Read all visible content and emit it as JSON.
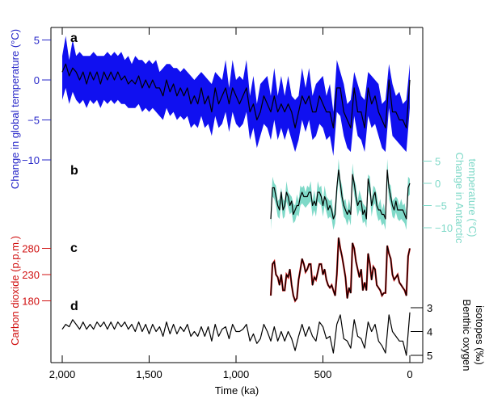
{
  "chart_data": [
    {
      "type": "area",
      "panel": "a",
      "ylabel": "Change in global temperature (°C)",
      "yticks": [
        5,
        0,
        -5,
        -10
      ],
      "ylim": [
        -12,
        6
      ],
      "color": "#1010f0",
      "uncertainty": 2.5,
      "x": [
        0,
        20,
        40,
        60,
        80,
        100,
        120,
        140,
        160,
        180,
        200,
        220,
        240,
        260,
        280,
        300,
        320,
        340,
        360,
        380,
        400,
        420,
        440,
        460,
        480,
        500,
        520,
        540,
        560,
        580,
        600,
        620,
        640,
        660,
        680,
        700,
        720,
        740,
        760,
        780,
        800,
        820,
        840,
        860,
        880,
        900,
        920,
        940,
        960,
        980,
        1000,
        1020,
        1040,
        1060,
        1080,
        1100,
        1120,
        1140,
        1160,
        1180,
        1200,
        1220,
        1240,
        1260,
        1280,
        1300,
        1320,
        1340,
        1360,
        1380,
        1400,
        1420,
        1440,
        1460,
        1480,
        1500,
        1520,
        1540,
        1560,
        1580,
        1600,
        1620,
        1640,
        1660,
        1680,
        1700,
        1720,
        1740,
        1760,
        1780,
        1800,
        1820,
        1840,
        1860,
        1880,
        1900,
        1920,
        1940,
        1960,
        1980,
        2000
      ],
      "values": [
        0,
        -6,
        -5,
        -5,
        -4,
        -4,
        0,
        -6,
        -5,
        -4,
        -2,
        -3,
        -1,
        -6,
        -4,
        -4,
        -1,
        -6,
        -5,
        -4,
        -1,
        -1,
        -6,
        -4,
        -4,
        -3,
        -2,
        -4,
        -4,
        -2,
        -3,
        -2,
        -4,
        -6,
        -4,
        -3,
        -4,
        -3,
        -4,
        -2,
        -4,
        -3,
        -2,
        -4,
        -5,
        -3,
        -4,
        -1,
        -2,
        -3,
        -2,
        -1,
        -3,
        -1,
        -2,
        -3,
        -1,
        -4,
        -2,
        -3,
        -1,
        -3,
        -2,
        -3,
        -1,
        -2,
        -1,
        -2,
        -0.5,
        -1.5,
        0,
        -2,
        -1,
        -1,
        0,
        -1,
        0,
        -1,
        0.5,
        -0.5,
        0,
        -0.5,
        0.5,
        0,
        1,
        0,
        1,
        0,
        1,
        -0.5,
        1,
        0,
        1,
        -0.5,
        1,
        0,
        1,
        1.5,
        0.5,
        2,
        1
      ]
    },
    {
      "type": "area",
      "panel": "b",
      "ylabel": "Change in Antarctic temperature (°C)",
      "yticks": [
        5,
        0,
        -5,
        -10
      ],
      "ylim": [
        -11,
        5
      ],
      "color": "#7fd9c8",
      "uncertainty": 1.5,
      "x": [
        0,
        10,
        20,
        30,
        40,
        50,
        60,
        70,
        80,
        90,
        100,
        110,
        120,
        130,
        140,
        150,
        160,
        170,
        180,
        190,
        200,
        210,
        220,
        230,
        240,
        250,
        260,
        270,
        280,
        290,
        300,
        310,
        320,
        330,
        340,
        350,
        360,
        370,
        380,
        390,
        400,
        410,
        420,
        430,
        440,
        450,
        460,
        470,
        480,
        490,
        500,
        510,
        520,
        530,
        540,
        550,
        560,
        570,
        580,
        590,
        600,
        610,
        620,
        630,
        640,
        650,
        660,
        670,
        680,
        690,
        700,
        710,
        720,
        730,
        740,
        750,
        760,
        770,
        780,
        790,
        800
      ],
      "values": [
        0,
        -1,
        -8,
        -7,
        -6,
        -6,
        -6,
        -6,
        -4,
        -6,
        -5,
        -3,
        -1,
        3,
        -8,
        -7,
        -7,
        -6,
        -6,
        -5,
        -2,
        -3,
        -5,
        -1,
        1,
        -8,
        -6,
        -7,
        -4,
        -4,
        -5,
        -3,
        0,
        2,
        -7,
        -6,
        -7,
        -6,
        -5,
        -3,
        0,
        3,
        -1,
        -7,
        -8,
        -6,
        -5,
        -6,
        -4,
        -3,
        -5,
        -3,
        -2,
        -2,
        -5,
        -4,
        -5,
        -2,
        -2,
        -3,
        -3,
        -3,
        -2,
        -3,
        -5,
        -5,
        -6,
        -7,
        -4,
        -5,
        -3,
        -2,
        -5,
        -6,
        -2,
        -6,
        -5,
        -3,
        -1,
        -1,
        -8
      ]
    },
    {
      "type": "line",
      "panel": "c",
      "ylabel": "Carbon dioxide (p.p.m.)",
      "yticks": [
        280,
        230,
        180
      ],
      "ylim": [
        170,
        300
      ],
      "color": "#d01010",
      "x": [
        0,
        10,
        20,
        30,
        40,
        50,
        60,
        70,
        80,
        90,
        100,
        110,
        120,
        130,
        140,
        150,
        160,
        170,
        180,
        190,
        200,
        210,
        220,
        230,
        240,
        250,
        260,
        270,
        280,
        290,
        300,
        310,
        320,
        330,
        340,
        350,
        360,
        370,
        380,
        390,
        400,
        410,
        420,
        430,
        440,
        450,
        460,
        470,
        480,
        490,
        500,
        510,
        520,
        530,
        540,
        550,
        560,
        570,
        580,
        590,
        600,
        610,
        620,
        630,
        640,
        650,
        660,
        670,
        680,
        690,
        700,
        710,
        720,
        730,
        740,
        750,
        760,
        770,
        780,
        790,
        800
      ],
      "values": [
        280,
        265,
        190,
        200,
        205,
        210,
        215,
        230,
        225,
        220,
        230,
        260,
        270,
        285,
        195,
        195,
        190,
        200,
        205,
        210,
        240,
        245,
        220,
        250,
        270,
        200,
        215,
        200,
        240,
        225,
        240,
        255,
        280,
        290,
        195,
        205,
        185,
        225,
        245,
        265,
        280,
        300,
        230,
        190,
        200,
        210,
        205,
        210,
        220,
        240,
        230,
        250,
        250,
        235,
        220,
        225,
        210,
        250,
        250,
        240,
        235,
        250,
        260,
        240,
        220,
        185,
        180,
        190,
        210,
        240,
        225,
        230,
        200,
        200,
        230,
        210,
        225,
        230,
        255,
        250,
        190
      ]
    },
    {
      "type": "line",
      "panel": "d",
      "ylabel": "Benthic oxygen isotopes (‰)",
      "yticks": [
        3,
        4,
        5
      ],
      "ylim": [
        3,
        5
      ],
      "inverted": true,
      "color": "#000000",
      "x": [
        0,
        20,
        40,
        60,
        80,
        100,
        120,
        140,
        160,
        180,
        200,
        220,
        240,
        260,
        280,
        300,
        320,
        340,
        360,
        380,
        400,
        420,
        440,
        460,
        480,
        500,
        520,
        540,
        560,
        580,
        600,
        620,
        640,
        660,
        680,
        700,
        720,
        740,
        760,
        780,
        800,
        820,
        840,
        860,
        880,
        900,
        920,
        940,
        960,
        980,
        1000,
        1020,
        1040,
        1060,
        1080,
        1100,
        1120,
        1140,
        1160,
        1180,
        1200,
        1220,
        1240,
        1260,
        1280,
        1300,
        1320,
        1340,
        1360,
        1380,
        1400,
        1420,
        1440,
        1460,
        1480,
        1500,
        1520,
        1540,
        1560,
        1580,
        1600,
        1620,
        1640,
        1660,
        1680,
        1700,
        1720,
        1740,
        1760,
        1780,
        1800,
        1820,
        1840,
        1860,
        1880,
        1900,
        1920,
        1940,
        1960,
        1980,
        2000
      ],
      "values": [
        3.2,
        5,
        4.4,
        4.4,
        4.2,
        4,
        3.3,
        4.9,
        4.6,
        4.4,
        3.7,
        4,
        3.6,
        4.7,
        4.3,
        4.2,
        3.5,
        4.7,
        4.4,
        4.3,
        3.3,
        3.7,
        4.9,
        4.2,
        4.3,
        3.8,
        3.6,
        4.4,
        4.2,
        3.8,
        4.2,
        3.7,
        4.2,
        4.8,
        4.3,
        4,
        4.4,
        4,
        4.4,
        3.8,
        4.4,
        4,
        3.7,
        4.3,
        4.5,
        4.1,
        4.4,
        3.7,
        3.9,
        4,
        4,
        3.7,
        4.3,
        3.8,
        3.9,
        4.2,
        3.7,
        4.4,
        3.8,
        4.2,
        3.8,
        4.2,
        4,
        4.2,
        3.7,
        4,
        3.8,
        4.1,
        3.7,
        4.1,
        3.6,
        4.2,
        3.8,
        4,
        3.7,
        4.1,
        3.7,
        4,
        3.6,
        4,
        3.7,
        3.9,
        3.6,
        3.8,
        3.6,
        3.9,
        3.6,
        3.9,
        3.6,
        3.8,
        3.6,
        3.9,
        3.7,
        3.9,
        3.6,
        3.9,
        3.7,
        3.5,
        3.8,
        3.7,
        3.9
      ]
    }
  ],
  "x_axis": {
    "label": "Time (ka)",
    "ticks": [
      2000,
      1500,
      1000,
      500,
      0
    ],
    "tick_labels": [
      "2,000",
      "1,500",
      "1,000",
      "500",
      "0"
    ],
    "xlim": [
      2000,
      0
    ]
  },
  "panel_labels": [
    "a",
    "b",
    "c",
    "d"
  ],
  "labels": {
    "global": "Change in global temperature (°C)",
    "antarctic_1": "Change in Antarctic",
    "antarctic_2": "temperature (°C)",
    "co2": "Carbon dioxide (p.p.m.)",
    "benthic_1": "Benthic oxygen",
    "benthic_2": "isotopes (‰)",
    "time": "Time (ka)"
  },
  "tick_text": {
    "a": [
      "5",
      "0",
      "−10",
      "−5"
    ],
    "b": [
      "5",
      "0",
      "−5",
      "−10"
    ],
    "c": [
      "280",
      "230",
      "180"
    ],
    "d": [
      "3",
      "4",
      "5"
    ]
  },
  "colors": {
    "global": "#1010f0",
    "global_text": "#2626c8",
    "antarctic": "#7fd9c8",
    "co2": "#d01010",
    "line": "#000000"
  }
}
